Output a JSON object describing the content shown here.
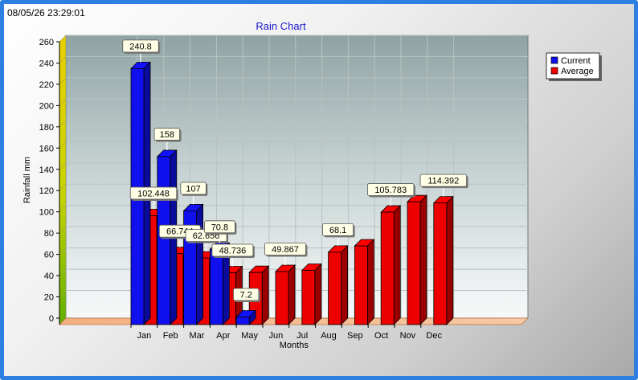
{
  "timestamp": "08/05/26 23:29:01",
  "chart_data": {
    "type": "bar",
    "title": "Rain Chart",
    "xlabel": "Months",
    "ylabel": "Rainfall mm",
    "ylim": [
      0,
      260
    ],
    "yticks": [
      0,
      20,
      40,
      60,
      80,
      100,
      120,
      140,
      160,
      180,
      200,
      220,
      240,
      260
    ],
    "categories": [
      "Jan",
      "Feb",
      "Mar",
      "Apr",
      "May",
      "Jun",
      "Jul",
      "Aug",
      "Sep",
      "Oct",
      "Nov",
      "Dec"
    ],
    "series": [
      {
        "name": "Current",
        "color": "#1010ee",
        "values": [
          240.8,
          158,
          107,
          70.8,
          7.2,
          null,
          null,
          null,
          null,
          null,
          null,
          null
        ],
        "labels": [
          "240.8",
          "158",
          "107",
          "70.8",
          "7.2",
          "",
          "",
          "",
          "",
          "",
          "",
          ""
        ]
      },
      {
        "name": "Average",
        "color": "#ee0000",
        "values": [
          102.448,
          66.744,
          62.656,
          48.736,
          49.0,
          49.867,
          51.0,
          68.1,
          74.0,
          105.783,
          115.5,
          114.392
        ],
        "labels": [
          "102.448",
          "66.744",
          "62.656",
          "48.736",
          "",
          "49.867",
          "",
          "68.1",
          "",
          "105.783",
          "",
          "114.392"
        ]
      }
    ],
    "grid": true,
    "legend_position": "top-right"
  }
}
